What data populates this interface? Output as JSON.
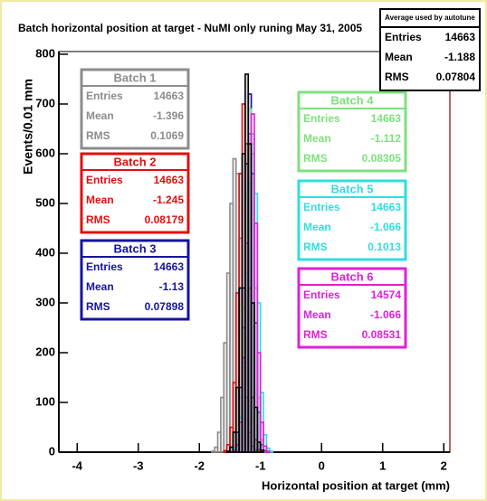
{
  "chart_data": {
    "type": "histogram",
    "title": "Batch horizontal position at target - NuMI only runing May 31, 2005",
    "x_label": "Horizontal position at target (mm)",
    "y_label": "Events/0.01 mm",
    "xlim": [
      -4.3,
      2.1
    ],
    "xticks": [
      -4,
      -3,
      -2,
      -1,
      0,
      1,
      2
    ],
    "ylim": [
      0,
      800
    ],
    "yticks": [
      0,
      100,
      200,
      300,
      400,
      500,
      600,
      700,
      800
    ],
    "bins": [
      -1.8,
      -1.75,
      -1.7,
      -1.65,
      -1.6,
      -1.55,
      -1.5,
      -1.45,
      -1.4,
      -1.35,
      -1.3,
      -1.25,
      -1.2,
      -1.15,
      -1.1,
      -1.05,
      -1.0,
      -0.95,
      -0.9,
      -0.85,
      -0.8,
      -0.75,
      -0.7,
      -0.65,
      -0.6
    ],
    "stats_row_labels": [
      "Entries",
      "Mean",
      "RMS"
    ],
    "series": [
      {
        "name": "Batch 1",
        "color": "#8c8c8c",
        "stats": [
          14663,
          -1.396,
          0.1069
        ],
        "values": [
          2,
          10,
          40,
          110,
          220,
          360,
          500,
          590,
          560,
          430,
          250,
          110,
          40,
          12,
          4,
          0,
          0,
          0,
          0,
          0,
          0,
          0,
          0,
          0
        ]
      },
      {
        "name": "Batch 2",
        "color": "#e01010",
        "stats": [
          14663,
          -1.245,
          0.08179
        ],
        "values": [
          0,
          0,
          0,
          0,
          3,
          15,
          50,
          140,
          320,
          560,
          700,
          620,
          330,
          110,
          25,
          5,
          0,
          0,
          0,
          0,
          0,
          0,
          0,
          0
        ]
      },
      {
        "name": "Batch 3",
        "color": "#1414a0",
        "stats": [
          14663,
          -1.13,
          0.07898
        ],
        "values": [
          0,
          0,
          0,
          0,
          0,
          0,
          2,
          10,
          40,
          130,
          330,
          580,
          720,
          560,
          260,
          80,
          15,
          3,
          0,
          0,
          0,
          0,
          0,
          0
        ]
      },
      {
        "name": "Batch 4",
        "color": "#7ee07e",
        "stats": [
          14663,
          -1.112,
          0.08305
        ],
        "values": [
          0,
          0,
          0,
          0,
          0,
          0,
          2,
          10,
          35,
          110,
          290,
          520,
          690,
          600,
          330,
          110,
          25,
          5,
          0,
          0,
          0,
          0,
          0,
          0
        ]
      },
      {
        "name": "Batch 5",
        "color": "#30dede",
        "stats": [
          14663,
          -1.066,
          0.1013
        ],
        "values": [
          0,
          0,
          0,
          0,
          0,
          0,
          2,
          8,
          25,
          70,
          180,
          360,
          540,
          640,
          520,
          300,
          120,
          35,
          8,
          2,
          0,
          0,
          0,
          0
        ]
      },
      {
        "name": "Batch 6",
        "color": "#e020d8",
        "stats": [
          14574,
          -1.066,
          0.08531
        ],
        "values": [
          0,
          0,
          0,
          0,
          0,
          0,
          0,
          3,
          15,
          60,
          190,
          420,
          640,
          680,
          460,
          200,
          60,
          12,
          2,
          0,
          0,
          0,
          0,
          0
        ]
      },
      {
        "color": "#000000",
        "values": [
          0,
          0,
          0,
          0,
          0,
          2,
          10,
          40,
          130,
          330,
          600,
          760,
          620,
          300,
          90,
          20,
          4,
          0,
          0,
          0,
          0,
          0,
          0,
          0
        ]
      }
    ],
    "average_box": {
      "title": "Average used by autotune",
      "stats": [
        14663,
        -1.188,
        0.07804
      ]
    }
  }
}
